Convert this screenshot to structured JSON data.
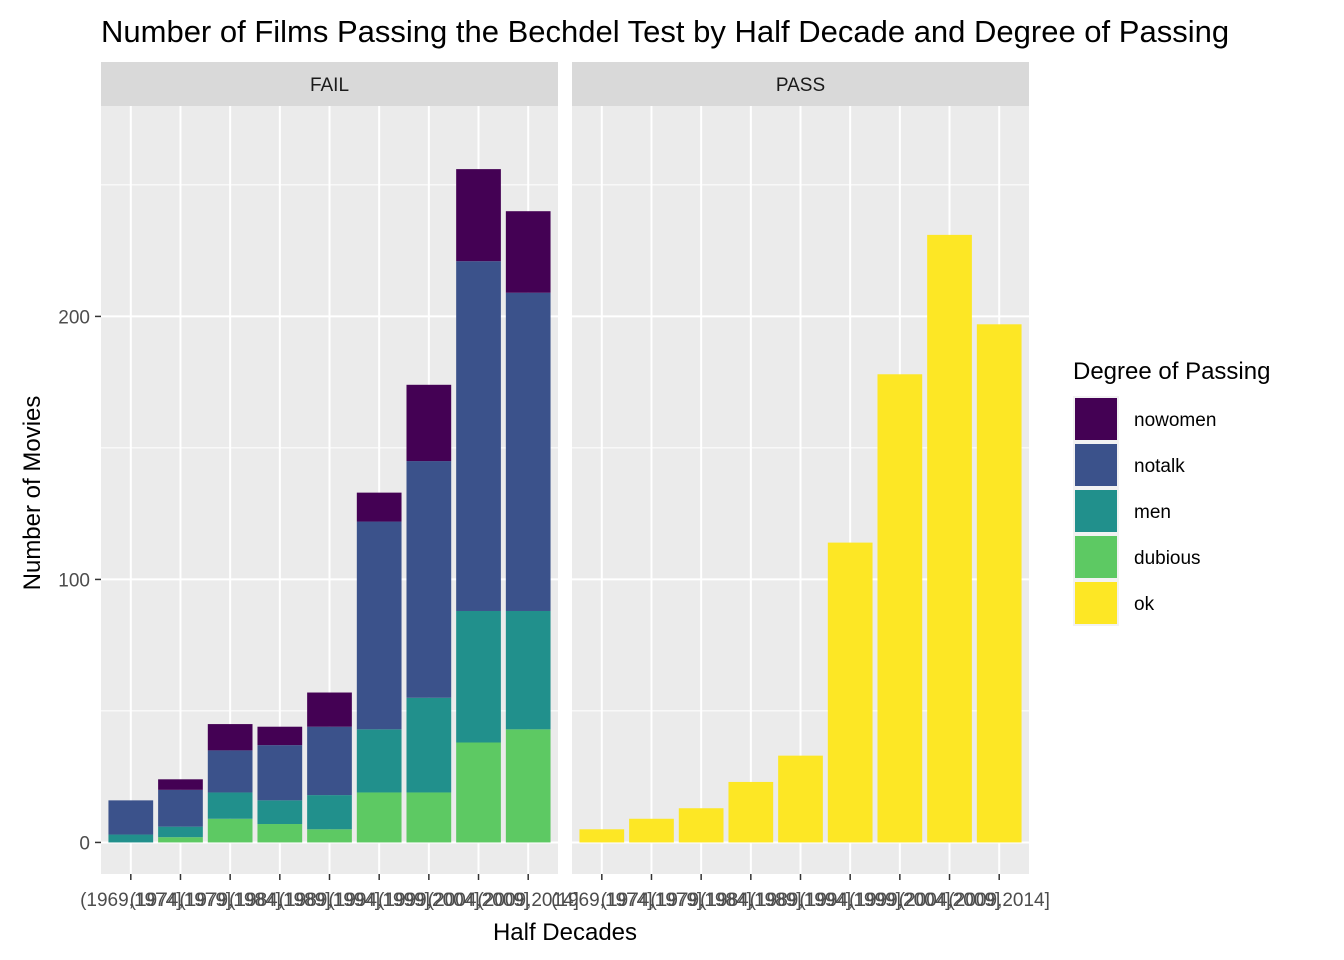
{
  "chart_data": {
    "type": "bar",
    "stacked": true,
    "faceted": true,
    "title": "Number of Films Passing the Bechdel Test by Half Decade and Degree of Passing",
    "xlabel": "Half Decades",
    "ylabel": "Number of Movies",
    "ylim": [
      -12,
      280
    ],
    "y_ticks": [
      0,
      100,
      200
    ],
    "grid": true,
    "legend": {
      "title": "Degree of Passing",
      "position": "right",
      "entries": [
        {
          "name": "nowomen",
          "color": "#440154"
        },
        {
          "name": "notalk",
          "color": "#3b528b"
        },
        {
          "name": "men",
          "color": "#21908c"
        },
        {
          "name": "dubious",
          "color": "#5dc963"
        },
        {
          "name": "ok",
          "color": "#fde725"
        }
      ]
    },
    "categories": [
      "(1969,1974]",
      "(1974,1979]",
      "(1979,1984]",
      "(1984,1989]",
      "(1989,1994]",
      "(1994,1999]",
      "(1999,2004]",
      "(2004,2009]",
      "(2009,2014]"
    ],
    "facets": [
      {
        "label": "FAIL",
        "series": [
          {
            "name": "dubious",
            "color": "#5dc963",
            "values": [
              0,
              2,
              9,
              7,
              5,
              19,
              19,
              38,
              43
            ]
          },
          {
            "name": "men",
            "color": "#21908c",
            "values": [
              3,
              4,
              10,
              9,
              13,
              24,
              36,
              50,
              45
            ]
          },
          {
            "name": "notalk",
            "color": "#3b528b",
            "values": [
              13,
              14,
              16,
              21,
              26,
              79,
              90,
              133,
              121
            ]
          },
          {
            "name": "nowomen",
            "color": "#440154",
            "values": [
              0,
              4,
              10,
              7,
              13,
              11,
              29,
              35,
              31
            ]
          }
        ]
      },
      {
        "label": "PASS",
        "series": [
          {
            "name": "ok",
            "color": "#fde725",
            "values": [
              5,
              9,
              13,
              23,
              33,
              114,
              178,
              231,
              197
            ]
          }
        ]
      }
    ]
  }
}
